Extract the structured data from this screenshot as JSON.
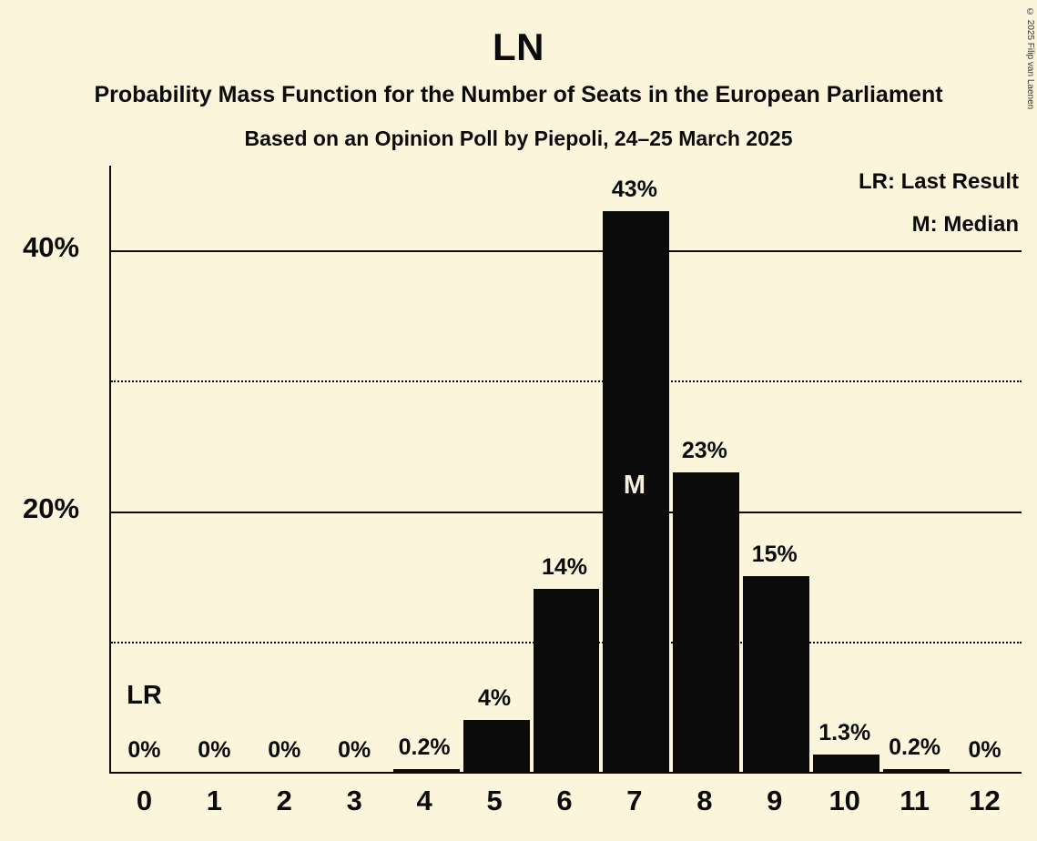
{
  "title": "LN",
  "subtitle1": "Probability Mass Function for the Number of Seats in the European Parliament",
  "subtitle2": "Based on an Opinion Poll by Piepoli, 24–25 March 2025",
  "legend": {
    "last_result": "LR: Last Result",
    "median": "M: Median"
  },
  "copyright": "© 2025 Filip van Laenen",
  "colors": {
    "background": "#fbf5dc",
    "bar": "#0b0b0b",
    "text": "#0b0b0b",
    "median_label": "#f5efdb"
  },
  "chart_data": {
    "type": "bar",
    "title": "LN",
    "xlabel": "",
    "ylabel": "",
    "categories": [
      "0",
      "1",
      "2",
      "3",
      "4",
      "5",
      "6",
      "7",
      "8",
      "9",
      "10",
      "11",
      "12"
    ],
    "values": [
      0,
      0,
      0,
      0,
      0.2,
      4,
      14,
      43,
      23,
      15,
      1.3,
      0.2,
      0
    ],
    "value_labels": [
      "0%",
      "0%",
      "0%",
      "0%",
      "0.2%",
      "4%",
      "14%",
      "43%",
      "23%",
      "15%",
      "1.3%",
      "0.2%",
      "0%"
    ],
    "ylim": [
      0,
      46.5
    ],
    "grid": "horizontal",
    "yticks": [
      {
        "value": 10,
        "label": "",
        "style": "dotted"
      },
      {
        "value": 20,
        "label": "20%",
        "style": "solid"
      },
      {
        "value": 30,
        "label": "",
        "style": "dotted"
      },
      {
        "value": 40,
        "label": "40%",
        "style": "solid"
      }
    ],
    "median_index": 7,
    "median_marker": "M",
    "last_result_index": 0,
    "last_result_marker": "LR",
    "legend_position": "top-right"
  }
}
